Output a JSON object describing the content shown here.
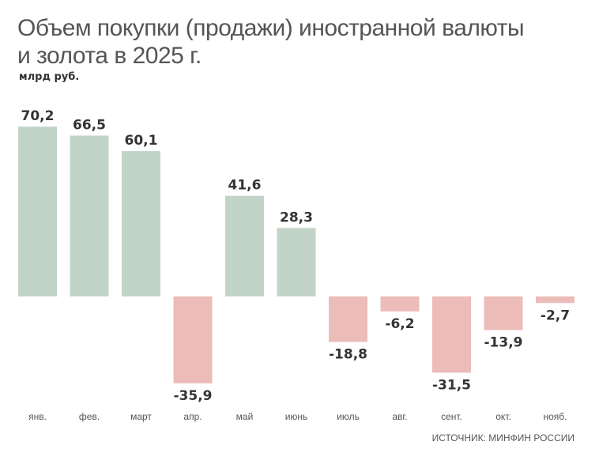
{
  "chart_data": {
    "type": "bar",
    "title": "Объем покупки (продажи) иностранной валюты и золота в 2025 г.",
    "title_lines": [
      "Объем покупки (продажи) иностранной валюты",
      "и золота в 2025 г."
    ],
    "ylabel": "млрд руб.",
    "source": "ИСТОЧНИК: МИНФИН РОССИИ",
    "categories": [
      "янв.",
      "фев.",
      "март",
      "апр.",
      "май",
      "июнь",
      "июль",
      "авг.",
      "сент.",
      "окт.",
      "нояб."
    ],
    "values": [
      70.2,
      66.5,
      60.1,
      -35.9,
      41.6,
      28.3,
      -18.8,
      -6.2,
      -31.5,
      -13.9,
      -2.7
    ],
    "labels": [
      "70,2",
      "66,5",
      "60,1",
      "-35,9",
      "41,6",
      "28,3",
      "-18,8",
      "-6,2",
      "-31,5",
      "-13,9",
      "-2,7"
    ],
    "ylim": [
      -35.9,
      70.2
    ],
    "grid": false,
    "colors": {
      "positive": "#c2d4c7",
      "negative": "#ecbcb8"
    }
  }
}
